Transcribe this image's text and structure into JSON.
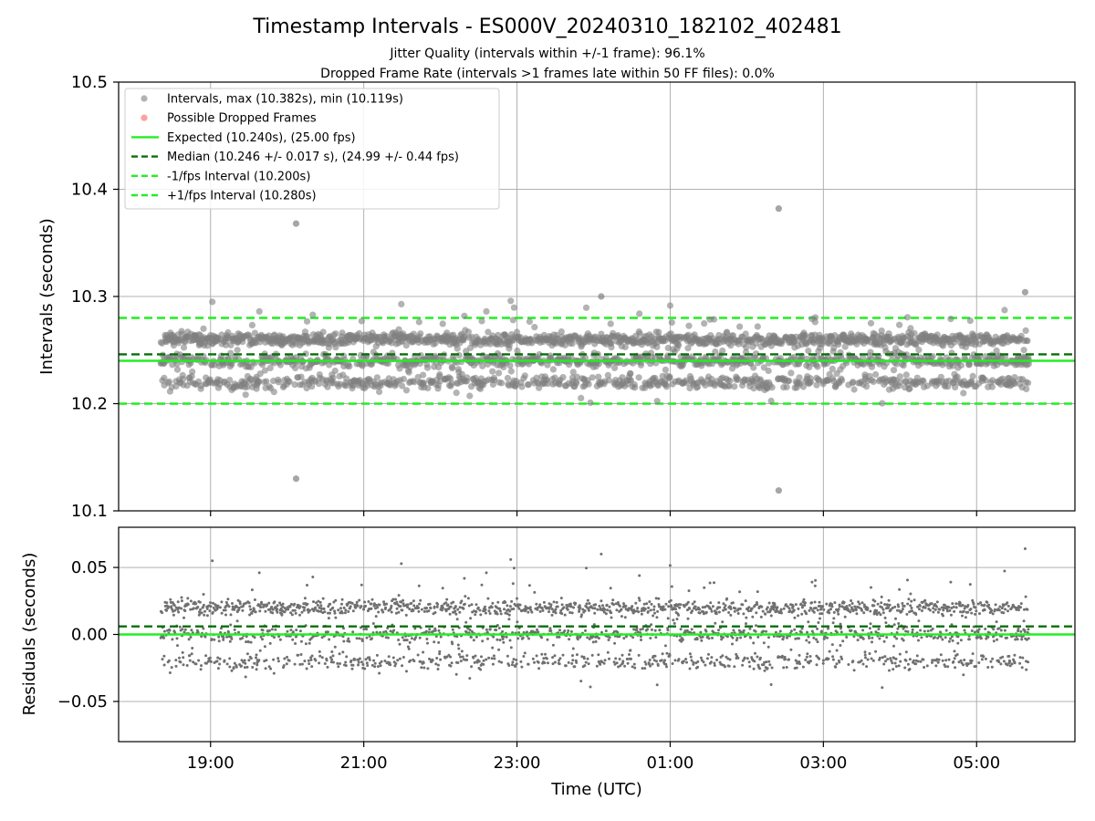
{
  "chart_data": {
    "type": "scatter",
    "title": "Timestamp Intervals - ES000V_20240310_182102_402481",
    "subtitles": [
      "Jitter Quality (intervals within +/-1 frame): 96.1%",
      "Dropped Frame Rate (intervals >1 frames late within 50 FF files): 0.0%"
    ],
    "xlabel": "Time (UTC)",
    "x_ticks": [
      "19:00",
      "21:00",
      "23:00",
      "01:00",
      "03:00",
      "05:00"
    ],
    "x_range": [
      "2024-03-10T17:48",
      "2024-03-11T06:17"
    ],
    "data_x_range": [
      "2024-03-10T18:21",
      "2024-03-11T05:41"
    ],
    "legend_position": "upper-left",
    "grid": true,
    "colors": {
      "points": "#808080",
      "dropped": "#ff6060",
      "expected": "#22ee22",
      "median": "#0a6e0a",
      "interval_band": "#22ee22"
    },
    "top_panel": {
      "ylabel": "Intervals (seconds)",
      "ylim": [
        10.1,
        10.5
      ],
      "y_ticks": [
        "10.1",
        "10.2",
        "10.3",
        "10.4",
        "10.5"
      ],
      "expected": 10.24,
      "median": 10.246,
      "lower_interval": 10.2,
      "upper_interval": 10.28,
      "max": 10.382,
      "min": 10.119,
      "outliers": [
        {
          "x": "2024-03-10T20:07",
          "y": 10.368
        },
        {
          "x": "2024-03-10T20:07",
          "y": 10.13
        },
        {
          "x": "2024-03-11T02:25",
          "y": 10.382
        },
        {
          "x": "2024-03-11T02:25",
          "y": 10.119
        },
        {
          "x": "2024-03-11T05:38",
          "y": 10.304
        },
        {
          "x": "2024-03-11T00:06",
          "y": 10.3
        }
      ]
    },
    "bottom_panel": {
      "ylabel": "Residuals (seconds)",
      "ylim": [
        -0.08,
        0.08
      ],
      "y_ticks": [
        "0.05",
        "0.00",
        "−0.05"
      ],
      "expected": 0.0,
      "median": 0.006
    },
    "legend": [
      {
        "label": "Intervals, max (10.382s), min (10.119s)",
        "kind": "marker",
        "color": "#808080"
      },
      {
        "label": "Possible Dropped Frames",
        "kind": "marker",
        "color": "#ff6060"
      },
      {
        "label": "Expected (10.240s), (25.00 fps)",
        "kind": "solid",
        "color": "#22ee22"
      },
      {
        "label": "Median (10.246 +/- 0.017 s), (24.99 +/- 0.44 fps)",
        "kind": "dashed",
        "color": "#0a6e0a"
      },
      {
        "label": "-1/fps Interval (10.200s)",
        "kind": "dashed",
        "color": "#22ee22"
      },
      {
        "label": "+1/fps Interval (10.280s)",
        "kind": "dashed",
        "color": "#22ee22"
      }
    ]
  }
}
